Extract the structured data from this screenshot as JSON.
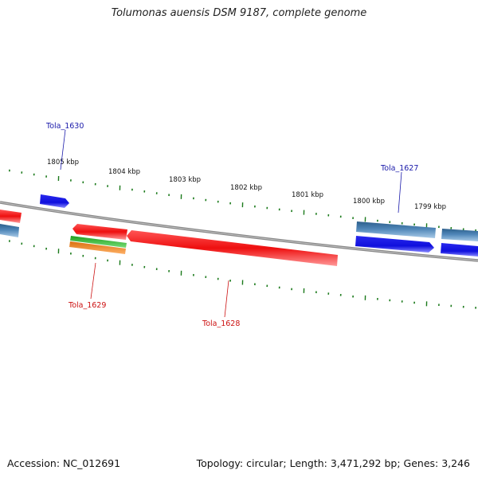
{
  "title": "Tolumonas auensis DSM 9187, complete genome",
  "footer": {
    "accession": "Accession: NC_012691",
    "summary": "Topology: circular; Length: 3,471,292 bp; Genes: 3,246"
  },
  "colors": {
    "backbone": "#7f7f7f",
    "tick": "#1b7a1b",
    "reverse_gene": "#ee1111",
    "forward_gene": "#1111dd",
    "forward_gene_steel": "#4f86b8",
    "rna_green": "#33bb33",
    "rna_orange": "#ee8822",
    "label_forward": "#1a1aaa",
    "label_reverse": "#cc1111"
  },
  "scale_labels": [
    "1805 kbp",
    "1804 kbp",
    "1803 kbp",
    "1802 kbp",
    "1801 kbp",
    "1800 kbp",
    "1799 kbp"
  ],
  "gene_labels": {
    "tola_1630": "Tola_1630",
    "tola_1629": "Tola_1629",
    "tola_1628": "Tola_1628",
    "tola_1627": "Tola_1627"
  }
}
